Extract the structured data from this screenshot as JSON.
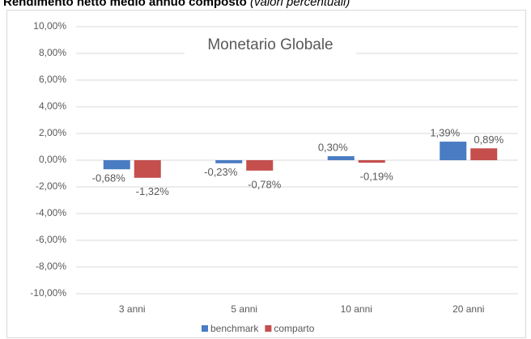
{
  "header": {
    "title": "Rendimento netto medio annuo composto",
    "subtitle": "(valori percentuali)"
  },
  "chart_data": {
    "type": "bar",
    "title": "Monetario Globale",
    "categories": [
      "3 anni",
      "5 anni",
      "10 anni",
      "20 anni"
    ],
    "series": [
      {
        "name": "benchmark",
        "color": "#4a7cc3",
        "values": [
          -0.68,
          -0.23,
          0.3,
          1.39
        ],
        "value_labels": [
          "-0,68%",
          "-0,23%",
          "0,30%",
          "1,39%"
        ]
      },
      {
        "name": "comparto",
        "color": "#c44f4d",
        "values": [
          -1.32,
          -0.78,
          -0.19,
          0.89
        ],
        "value_labels": [
          "-1,32%",
          "-0,78%",
          "-0,19%",
          "0,89%"
        ]
      }
    ],
    "ylim": [
      -10,
      10
    ],
    "yticks": [
      {
        "value": 10,
        "label": "10,00%"
      },
      {
        "value": 8,
        "label": "8,00%"
      },
      {
        "value": 6,
        "label": "6,00%"
      },
      {
        "value": 4,
        "label": "4,00%"
      },
      {
        "value": 2,
        "label": "2,00%"
      },
      {
        "value": 0,
        "label": "0,00%"
      },
      {
        "value": -2,
        "label": "-2,00%"
      },
      {
        "value": -4,
        "label": "-4,00%"
      },
      {
        "value": -6,
        "label": "-6,00%"
      },
      {
        "value": -8,
        "label": "-8,00%"
      },
      {
        "value": -10,
        "label": "-10,00%"
      }
    ],
    "grid": true,
    "legend": "bottom"
  }
}
